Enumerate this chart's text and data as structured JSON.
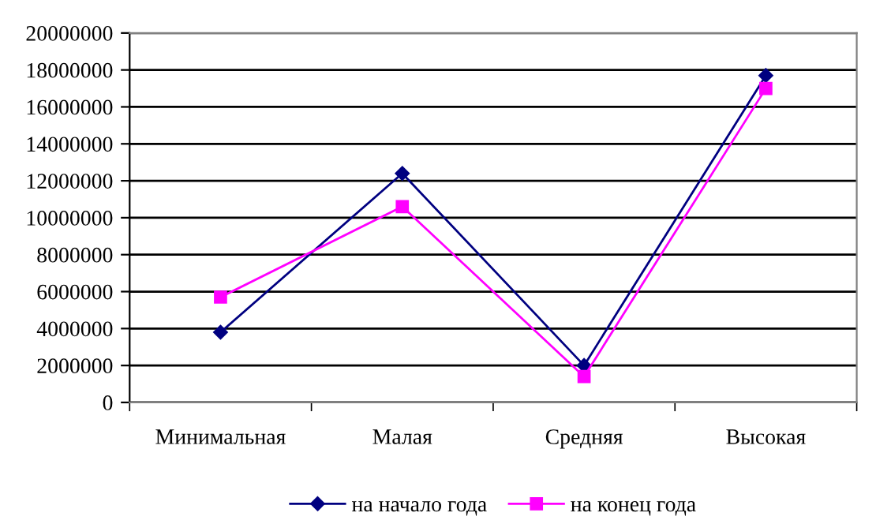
{
  "chart_data": {
    "type": "line",
    "categories": [
      "Минимальная",
      "Малая",
      "Средняя",
      "Высокая"
    ],
    "series": [
      {
        "name": "на начало года",
        "color": "#000080",
        "marker": "diamond",
        "values": [
          3800000,
          12400000,
          2000000,
          17700000
        ]
      },
      {
        "name": "на конец года",
        "color": "#ff00ff",
        "marker": "square",
        "values": [
          5700000,
          10600000,
          1400000,
          17000000
        ]
      }
    ],
    "ylim": [
      0,
      20000000
    ],
    "yticks": [
      0,
      2000000,
      4000000,
      6000000,
      8000000,
      10000000,
      12000000,
      14000000,
      16000000,
      18000000,
      20000000
    ],
    "grid": "y",
    "legend": "bottom",
    "line_style": "solid"
  }
}
